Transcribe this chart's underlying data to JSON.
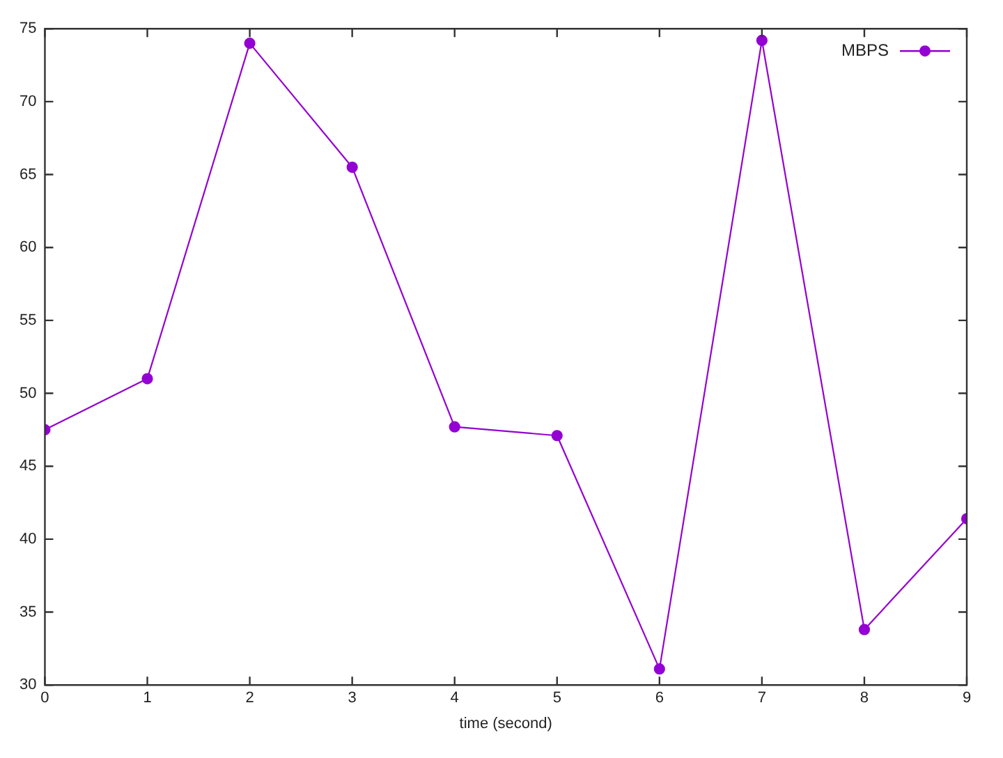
{
  "chart_data": {
    "type": "line",
    "xlabel": "time (second)",
    "x": [
      0,
      1,
      2,
      3,
      4,
      5,
      6,
      7,
      8,
      9
    ],
    "series": [
      {
        "name": "MBPS",
        "color": "#9400d3",
        "values": [
          47.5,
          51,
          74,
          65.5,
          47.7,
          47.1,
          31.1,
          74.2,
          33.8,
          41.4
        ]
      }
    ],
    "xlim": [
      0,
      9
    ],
    "xticks": [
      0,
      1,
      2,
      3,
      4,
      5,
      6,
      7,
      8,
      9
    ],
    "ylim": [
      30,
      75
    ],
    "yticks": [
      30,
      35,
      40,
      45,
      50,
      55,
      60,
      65,
      70,
      75
    ],
    "grid": false,
    "legend": "top right",
    "marker": "circle",
    "line_style": "solid"
  }
}
